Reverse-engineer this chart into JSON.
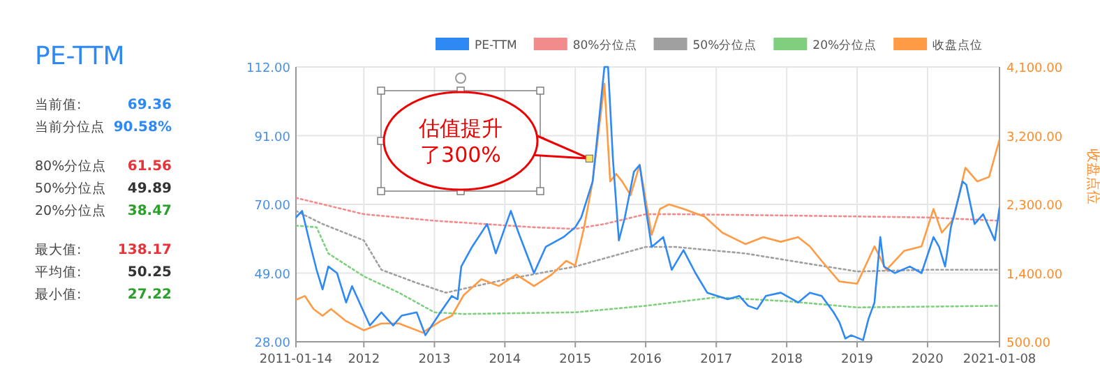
{
  "chart_data": [
    {
      "type": "other",
      "title": "PE-TTM",
      "annotations": [
        "当前值:",
        "69.36",
        "当前分位点",
        "90.58%",
        "80%分位点",
        "61.56",
        "50%分位点",
        "49.89",
        "20%分位点",
        "38.47",
        "最大值:",
        "138.17",
        "平均值:",
        "50.25",
        "最小值:",
        "27.22"
      ]
    },
    {
      "type": "line",
      "y2label": "收盘点位",
      "legend": "top",
      "grid": true,
      "marker": "none",
      "xlim": [
        "2011-01-14",
        "2021-01-08"
      ],
      "xticks": [
        {
          "value": "2011-01-14",
          "label": "2011-01-14"
        },
        {
          "value": "2012-01-01",
          "label": "2012"
        },
        {
          "value": "2013-01-01",
          "label": "2013"
        },
        {
          "value": "2014-01-01",
          "label": "2014"
        },
        {
          "value": "2015-01-01",
          "label": "2015"
        },
        {
          "value": "2016-01-01",
          "label": "2016"
        },
        {
          "value": "2017-01-01",
          "label": "2017"
        },
        {
          "value": "2018-01-01",
          "label": "2018"
        },
        {
          "value": "2019-01-01",
          "label": "2019"
        },
        {
          "value": "2020-01-01",
          "label": "2020"
        },
        {
          "value": "2021-01-08",
          "label": "2021-01-08"
        }
      ],
      "ylim": [
        28,
        112
      ],
      "yticks": [
        {
          "value": 28,
          "label": "28.00"
        },
        {
          "value": 49,
          "label": "49.00"
        },
        {
          "value": 70,
          "label": "70.00"
        },
        {
          "value": 91,
          "label": "91.00"
        },
        {
          "value": 112,
          "label": "112.00"
        }
      ],
      "y2lim": [
        500,
        4100
      ],
      "y2ticks": [
        {
          "value": 500,
          "label": "500.00"
        },
        {
          "value": 1400,
          "label": "1,400.00"
        },
        {
          "value": 2300,
          "label": "2,300.00"
        },
        {
          "value": 3200,
          "label": "3,200.00"
        },
        {
          "value": 4100,
          "label": "4,100.00"
        }
      ],
      "annotations": [
        {
          "text": "估值提升了300%",
          "x": "2015-03-15",
          "y": 84
        }
      ],
      "series": [
        {
          "name": "PE-TTM",
          "color": "#2f89f5",
          "line_style": "solid",
          "x": [
            "2011-01-14",
            "2011-02-15",
            "2011-04-01",
            "2011-05-01",
            "2011-06-01",
            "2011-07-01",
            "2011-08-15",
            "2011-10-01",
            "2011-11-01",
            "2012-02-01",
            "2012-04-01",
            "2012-06-01",
            "2012-07-15",
            "2012-10-01",
            "2012-11-15",
            "2013-02-01",
            "2013-04-01",
            "2013-05-01",
            "2013-05-20",
            "2013-07-15",
            "2013-10-01",
            "2013-11-15",
            "2014-02-01",
            "2014-03-15",
            "2014-06-01",
            "2014-08-01",
            "2014-11-01",
            "2015-01-01",
            "2015-02-01",
            "2015-04-01",
            "2015-05-01",
            "2015-06-01",
            "2015-06-20",
            "2015-07-15",
            "2015-08-15",
            "2015-09-15",
            "2015-11-01",
            "2015-12-01",
            "2016-01-01",
            "2016-02-01",
            "2016-04-01",
            "2016-05-15",
            "2016-07-15",
            "2016-09-15",
            "2016-11-15",
            "2017-03-01",
            "2017-05-01",
            "2017-06-15",
            "2017-08-01",
            "2017-09-15",
            "2017-12-01",
            "2018-03-01",
            "2018-05-01",
            "2018-07-01",
            "2018-09-01",
            "2018-10-01",
            "2018-11-01",
            "2018-12-01",
            "2019-02-01",
            "2019-03-01",
            "2019-04-01",
            "2019-05-01",
            "2019-05-20",
            "2019-07-15",
            "2019-10-01",
            "2019-12-01",
            "2020-02-01",
            "2020-03-01",
            "2020-04-01",
            "2020-05-01",
            "2020-07-01",
            "2020-07-20",
            "2020-09-01",
            "2020-10-15",
            "2020-12-15",
            "2021-01-08"
          ],
          "values": [
            66,
            68,
            57,
            50,
            44,
            51,
            49,
            40,
            45,
            33,
            37,
            33,
            36,
            37,
            30,
            37,
            42,
            41,
            51,
            57,
            64,
            55,
            68,
            61,
            49,
            57,
            60,
            63,
            66,
            77,
            94,
            112,
            112,
            84,
            59,
            66,
            80,
            82,
            69,
            57,
            60,
            50,
            56,
            49,
            43,
            41,
            42,
            39,
            38,
            42,
            43,
            40,
            43,
            42,
            37,
            34,
            29,
            30,
            28.5,
            35,
            40,
            60,
            51,
            49,
            51,
            49,
            60,
            57,
            51,
            63,
            77,
            76,
            64,
            67,
            59,
            69
          ]
        },
        {
          "name": "80%分位点",
          "color": "#f28b8b",
          "line_style": "dotted",
          "x": [
            "2011-01-14",
            "2012-01-01",
            "2013-01-01",
            "2014-06-01",
            "2015-01-01",
            "2015-06-01",
            "2016-01-01",
            "2016-06-01",
            "2018-01-01",
            "2020-01-01",
            "2021-01-08"
          ],
          "values": [
            72,
            67,
            65,
            63,
            62.5,
            64,
            67,
            67,
            66.6,
            66,
            65
          ]
        },
        {
          "name": "50%分位点",
          "color": "#a0a0a0",
          "line_style": "dotted",
          "x": [
            "2011-01-14",
            "2011-06-01",
            "2012-01-01",
            "2012-04-01",
            "2012-10-01",
            "2013-03-01",
            "2014-01-01",
            "2015-01-01",
            "2016-01-01",
            "2016-06-01",
            "2017-06-01",
            "2018-06-01",
            "2019-01-01",
            "2020-01-01",
            "2021-01-08"
          ],
          "values": [
            68,
            64,
            59,
            50,
            46,
            43,
            47,
            51,
            57,
            57,
            55,
            51.5,
            49.5,
            50,
            50
          ]
        },
        {
          "name": "20%分位点",
          "color": "#7fcf7f",
          "line_style": "dotted",
          "x": [
            "2011-01-14",
            "2011-05-01",
            "2011-07-01",
            "2012-01-01",
            "2012-07-01",
            "2013-01-01",
            "2013-06-01",
            "2015-01-01",
            "2016-01-01",
            "2017-01-01",
            "2018-01-01",
            "2019-01-01",
            "2021-01-08"
          ],
          "values": [
            63.5,
            63,
            55,
            48,
            43,
            37,
            36.5,
            37,
            39,
            41.6,
            40.4,
            38.5,
            39
          ]
        },
        {
          "name": "收盘点位",
          "color": "#ff9b45",
          "line_style": "solid",
          "axis": "y2",
          "x": [
            "2011-01-14",
            "2011-03-01",
            "2011-04-15",
            "2011-06-01",
            "2011-07-15",
            "2011-10-01",
            "2012-01-01",
            "2012-04-01",
            "2012-07-01",
            "2012-11-01",
            "2013-02-01",
            "2013-04-01",
            "2013-06-01",
            "2013-09-01",
            "2013-12-01",
            "2014-03-01",
            "2014-06-01",
            "2014-09-01",
            "2014-11-15",
            "2015-01-01",
            "2015-02-15",
            "2015-04-01",
            "2015-06-01",
            "2015-07-01",
            "2015-08-01",
            "2015-09-01",
            "2015-10-15",
            "2015-12-01",
            "2016-02-01",
            "2016-03-15",
            "2016-05-01",
            "2016-07-15",
            "2016-11-01",
            "2017-02-01",
            "2017-06-01",
            "2017-09-01",
            "2017-12-01",
            "2018-03-01",
            "2018-05-01",
            "2018-07-01",
            "2018-10-01",
            "2019-01-01",
            "2019-04-01",
            "2019-06-01",
            "2019-09-01",
            "2019-12-01",
            "2020-02-01",
            "2020-03-15",
            "2020-05-15",
            "2020-07-15",
            "2020-09-15",
            "2020-11-15",
            "2021-01-08"
          ],
          "values": [
            1050,
            1100,
            930,
            840,
            930,
            770,
            650,
            740,
            740,
            620,
            770,
            840,
            1110,
            1320,
            1230,
            1380,
            1230,
            1380,
            1560,
            1500,
            1990,
            2600,
            3880,
            2600,
            2700,
            2600,
            2420,
            2820,
            1900,
            2240,
            2300,
            2240,
            2140,
            1930,
            1780,
            1870,
            1810,
            1870,
            1750,
            1560,
            1290,
            1260,
            1750,
            1440,
            1690,
            1750,
            2240,
            1930,
            2110,
            2780,
            2600,
            2660,
            3150
          ]
        }
      ]
    }
  ]
}
